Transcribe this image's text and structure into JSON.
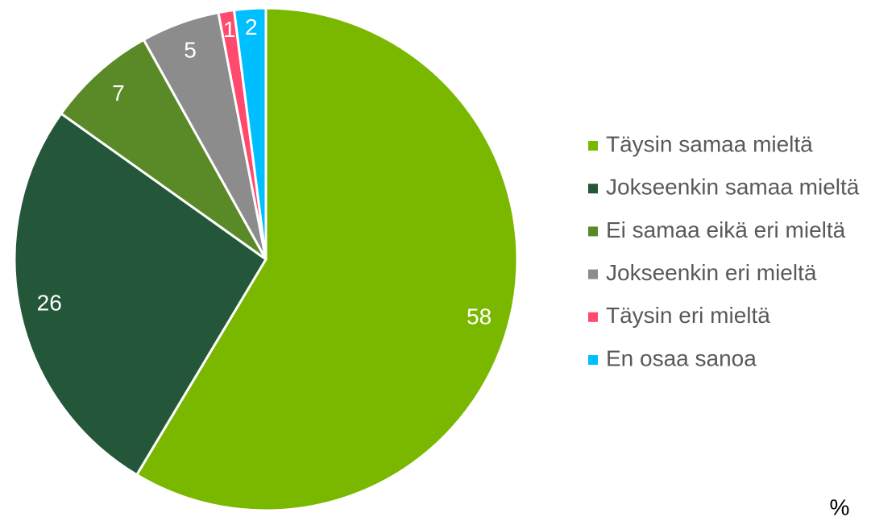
{
  "chart_data": {
    "type": "pie",
    "categories": [
      "Täysin samaa mieltä",
      "Jokseenkin samaa mieltä",
      "Ei samaa eikä eri mieltä",
      "Jokseenkin eri mieltä",
      "Täysin eri mieltä",
      "En osaa sanoa"
    ],
    "values": [
      58,
      26,
      7,
      5,
      1,
      2
    ],
    "colors": [
      "#7ab800",
      "#245639",
      "#5a8a27",
      "#8c8c8c",
      "#ff4a6e",
      "#00bfff"
    ],
    "legend": "right",
    "unit_label": "%"
  }
}
